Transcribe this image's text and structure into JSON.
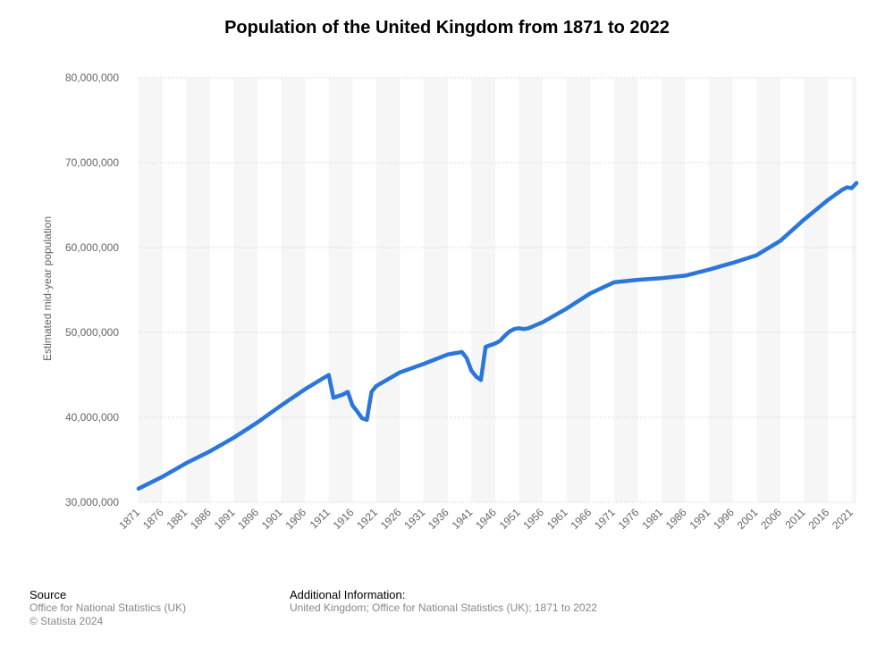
{
  "colors": {
    "line": "#2b76db",
    "band": "#f6f6f6",
    "grid": "#cccccc",
    "text": "#666666"
  },
  "footer": {
    "source_heading": "Source",
    "source_line1": "Office for National Statistics (UK)",
    "source_line2": "© Statista 2024",
    "info_heading": "Additional Information:",
    "info_line": "United Kingdom; Office for National Statistics (UK); 1871 to 2022"
  },
  "chart_data": {
    "type": "line",
    "title": "Population of the United Kingdom from 1871 to 2022",
    "xlabel": "",
    "ylabel": "Estimated mid-year population",
    "xlim": [
      1871,
      2022
    ],
    "ylim": [
      30000000,
      80000000
    ],
    "y_ticks": [
      30000000,
      40000000,
      50000000,
      60000000,
      70000000,
      80000000
    ],
    "y_tick_labels": [
      "30,000,000",
      "40,000,000",
      "50,000,000",
      "60,000,000",
      "70,000,000",
      "80,000,000"
    ],
    "x_tick_labels": [
      "1871",
      "1876",
      "1881",
      "1886",
      "1891",
      "1896",
      "1901",
      "1906",
      "1911",
      "1916",
      "1921",
      "1926",
      "1931",
      "1936",
      "1941",
      "1946",
      "1951",
      "1956",
      "1961",
      "1966",
      "1971",
      "1976",
      "1981",
      "1986",
      "1991",
      "1996",
      "2001",
      "2006",
      "2011",
      "2016",
      "2021"
    ],
    "grid": true,
    "legend": "none",
    "series": [
      {
        "x": [
          1871,
          1876,
          1881,
          1886,
          1891,
          1896,
          1901,
          1906,
          1911,
          1912,
          1913,
          1914,
          1915,
          1916,
          1917,
          1918,
          1919,
          1920,
          1921,
          1926,
          1931,
          1936,
          1938,
          1939,
          1940,
          1941,
          1942,
          1943,
          1944,
          1945,
          1946,
          1947,
          1948,
          1949,
          1950,
          1951,
          1952,
          1953,
          1956,
          1961,
          1966,
          1971,
          1976,
          1981,
          1986,
          1991,
          1996,
          2001,
          2006,
          2011,
          2016,
          2019,
          2020,
          2021,
          2022
        ],
        "y": [
          31600000,
          33000000,
          34600000,
          36000000,
          37600000,
          39400000,
          41400000,
          43300000,
          45000000,
          42300000,
          42500000,
          42700000,
          43000000,
          41400000,
          40700000,
          39900000,
          39700000,
          43000000,
          43700000,
          45300000,
          46300000,
          47400000,
          47600000,
          47700000,
          47000000,
          45500000,
          44800000,
          44400000,
          48300000,
          48500000,
          48700000,
          49000000,
          49600000,
          50100000,
          50400000,
          50500000,
          50400000,
          50500000,
          51200000,
          52800000,
          54600000,
          55900000,
          56200000,
          56400000,
          56700000,
          57400000,
          58200000,
          59100000,
          60800000,
          63300000,
          65600000,
          66800000,
          67100000,
          67000000,
          67600000
        ]
      }
    ]
  }
}
